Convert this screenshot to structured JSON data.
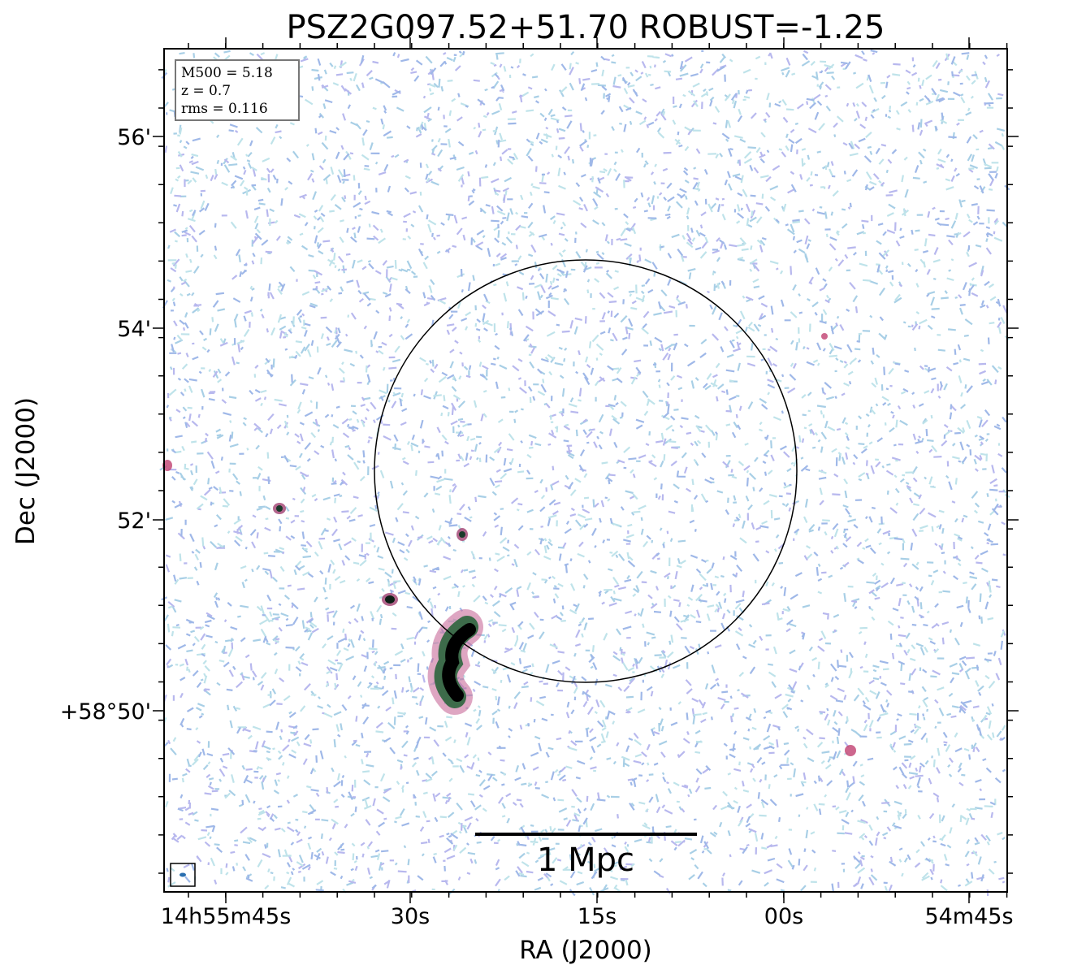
{
  "title": "PSZ2G097.52+51.70 ROBUST=-1.25",
  "x_axis": {
    "label": "RA (J2000)",
    "ticks": [
      "14h55m45s",
      "30s",
      "15s",
      "00s",
      "54m45s"
    ]
  },
  "y_axis": {
    "label": "Dec (J2000)",
    "ticks": [
      "56'",
      "54'",
      "52'",
      "+58°50'"
    ]
  },
  "info_box": [
    "M500 = 5.18",
    "z = 0.7",
    "rms = 0.116"
  ],
  "scale_bar": "1 Mpc"
}
